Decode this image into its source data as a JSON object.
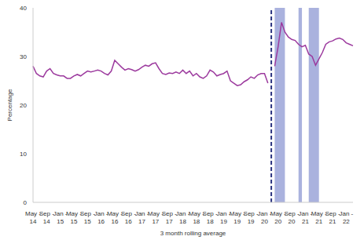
{
  "chart_data": {
    "type": "line",
    "x_label": "3 month rolling average",
    "y_label": "Percentage",
    "categories": [
      "May - 14",
      null,
      null,
      null,
      "Sep - 14",
      null,
      null,
      null,
      "Jan - 15",
      null,
      null,
      null,
      "May - 15",
      null,
      null,
      null,
      "Sep - 15",
      null,
      null,
      null,
      "Jan - 16",
      null,
      null,
      null,
      "May - 16",
      null,
      null,
      null,
      "Sep - 16",
      null,
      null,
      null,
      "Jan - 17",
      null,
      null,
      null,
      "May - 17",
      null,
      null,
      null,
      "Sep - 17",
      null,
      null,
      null,
      "Jan - 18",
      null,
      null,
      null,
      "May - 18",
      null,
      null,
      null,
      "Sep - 18",
      null,
      null,
      null,
      "Jan - 19",
      null,
      null,
      null,
      "May - 19",
      null,
      null,
      null,
      "Sep - 19",
      null,
      null,
      null,
      "Jan - 20",
      null,
      null,
      null,
      "May - 20",
      null,
      null,
      null,
      "Sep - 20",
      null,
      null,
      null,
      "Jan - 21",
      null,
      null,
      null,
      "May - 21",
      null,
      null,
      null,
      "Sep - 21",
      null,
      null,
      null,
      "Jan - 22",
      null,
      null
    ],
    "values": [
      28,
      26.5,
      26,
      25.8,
      27,
      27.5,
      26.5,
      26.2,
      26,
      26,
      25.5,
      25.5,
      26,
      26.3,
      26,
      26.5,
      27,
      26.8,
      27,
      27.2,
      27,
      26.5,
      26.2,
      27,
      29.2,
      28.5,
      27.8,
      27.2,
      27.5,
      27.3,
      27,
      27.3,
      27.8,
      28.2,
      28,
      28.5,
      28.7,
      27.5,
      26.5,
      26.3,
      26.6,
      26.5,
      26.8,
      26.5,
      27.2,
      26.5,
      27,
      26,
      26.5,
      25.8,
      25.5,
      26,
      27.2,
      26.8,
      26,
      26.3,
      26.5,
      27,
      25,
      24.5,
      24,
      24.2,
      24.8,
      25.2,
      25.8,
      25.5,
      26.2,
      26.5,
      26.5,
      24.5,
      null,
      28,
      32,
      37,
      35,
      34,
      33.5,
      33.3,
      32.5,
      32,
      32.3,
      30.5,
      30,
      28.2,
      29.5,
      30.8,
      32.5,
      33,
      33.2,
      33.6,
      33.8,
      33.5,
      32.8,
      32.5,
      32.2
    ],
    "color": "#9c3a9e",
    "ylim": [
      0,
      40
    ],
    "yticks": [
      0,
      10,
      20,
      30,
      40
    ],
    "grid": false,
    "reference_line": {
      "x": 70,
      "line_style": "dashed",
      "color": "#2b3480"
    },
    "shaded_periods": {
      "color": "#aab2de",
      "ranges": [
        [
          71,
          74
        ],
        [
          78,
          79
        ],
        [
          81,
          84
        ]
      ]
    }
  }
}
